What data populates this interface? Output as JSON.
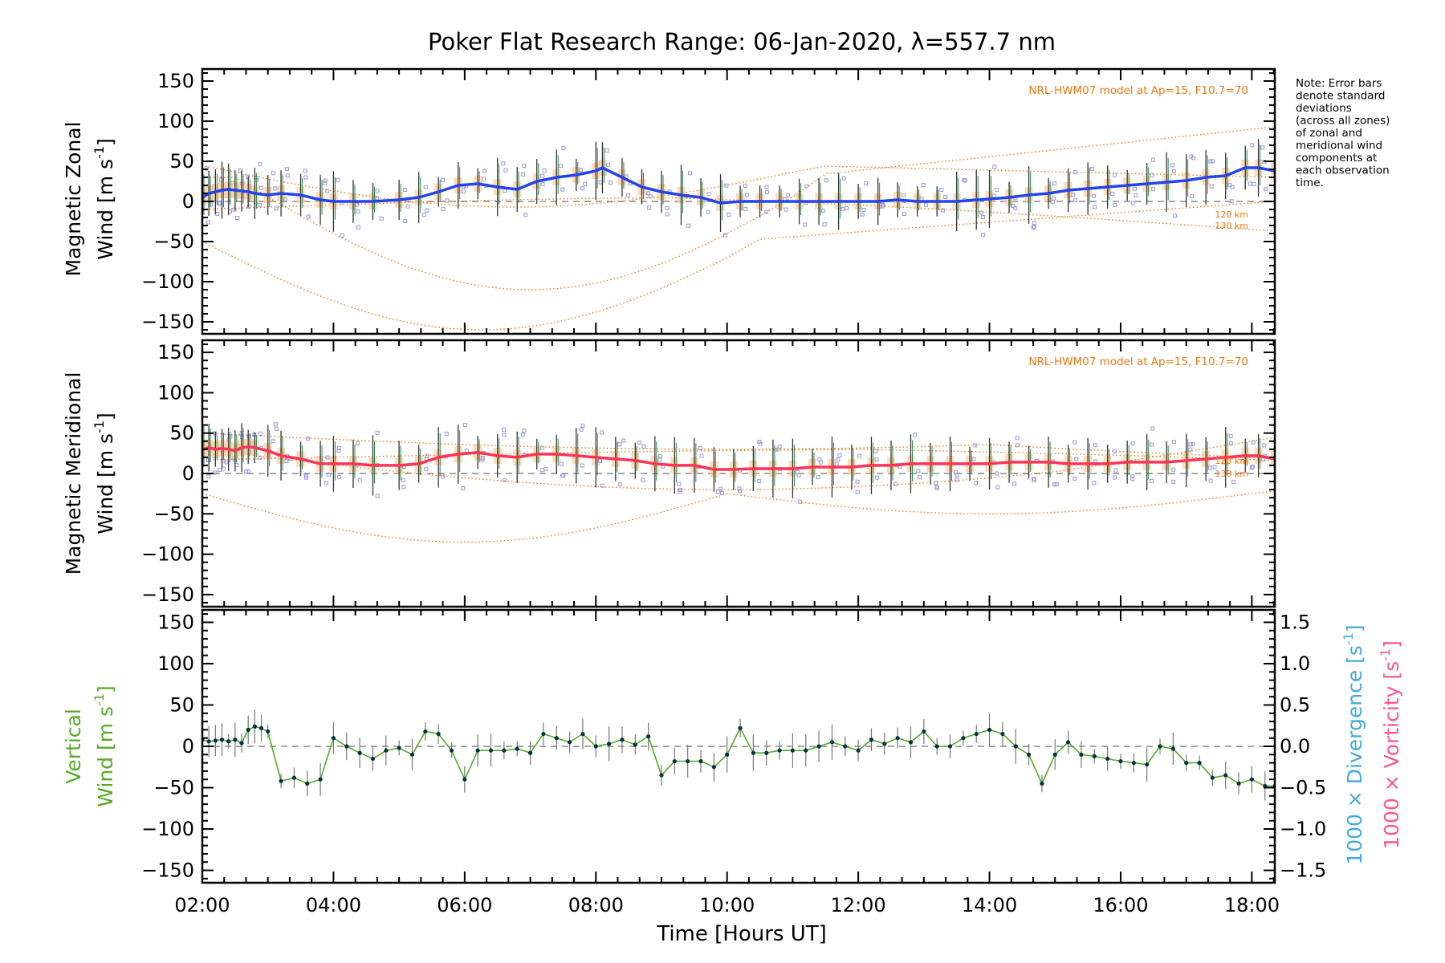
{
  "title": "Poker Flat Research Range: 06-Jan-2020, λ=557.7 nm",
  "note": [
    "Note: Error bars",
    "denote standard",
    "deviations",
    "(across all zones)",
    "of zonal and",
    "meridional wind",
    "components at",
    "each observation",
    "time."
  ],
  "x_axis": {
    "label": "Time [Hours UT]",
    "ticks": [
      "02:00",
      "04:00",
      "06:00",
      "08:00",
      "10:00",
      "12:00",
      "14:00",
      "16:00",
      "18:00"
    ],
    "range_hours": [
      2.0,
      18.35
    ]
  },
  "panels": {
    "zonal": {
      "ylabel_line1": "Magnetic Zonal",
      "ylabel_line2": "Wind [m s",
      "ylabel_sup": "-1",
      "ylabel_close": "]",
      "yticks": [
        "150",
        "100",
        "50",
        "0",
        "−50",
        "−100",
        "−150"
      ],
      "model_label": "NRL-HWM07 model at Ap=15, F10.7=70",
      "alt_labels": [
        "120 km",
        "130 km"
      ]
    },
    "meridional": {
      "ylabel_line1": "Magnetic Meridional",
      "ylabel_line2": "Wind [m s",
      "ylabel_sup": "-1",
      "ylabel_close": "]",
      "yticks": [
        "150",
        "100",
        "50",
        "0",
        "−50",
        "−100",
        "−150"
      ],
      "model_label": "NRL-HWM07 model at Ap=15, F10.7=70",
      "alt_labels": [
        "120 km",
        "130 km"
      ]
    },
    "vertical": {
      "ylabel_line1": "Vertical",
      "ylabel_line2": "Wind [m s",
      "ylabel_sup": "-1",
      "ylabel_close": "]",
      "yticks": [
        "150",
        "100",
        "50",
        "0",
        "−50",
        "−100",
        "−150"
      ],
      "right_ticks": [
        "1.5",
        "1.0",
        "0.5",
        "0.0",
        "−0.5",
        "−1.0",
        "−1.5"
      ],
      "right_label_div": "1000 × Divergence [s",
      "right_label_vort": "1000 × Vorticity [s",
      "right_sup": "-1",
      "right_close": "]"
    }
  },
  "colors": {
    "zonal_line": "#2244ee",
    "meridional_line": "#ff3355",
    "vertical_line": "#55aa22",
    "vertical_points": "#003344",
    "divergence_label": "#44aadd",
    "vorticity_label": "#ff5588",
    "model_curves": "#ee7711",
    "model_shade": "#ffcc99",
    "zone_markers": "#9999dd",
    "error_bars": "#333333",
    "zero_line": "#888888"
  },
  "chart_data": [
    {
      "type": "line",
      "panel": "zonal",
      "name": "",
      "ylim": [
        -165,
        165
      ],
      "x": [
        2.0,
        2.1,
        2.2,
        2.3,
        2.4,
        2.5,
        2.6,
        2.7,
        2.8,
        3.0,
        3.2,
        3.5,
        3.8,
        4.0,
        4.3,
        4.6,
        5.0,
        5.3,
        5.6,
        5.9,
        6.2,
        6.5,
        6.8,
        7.1,
        7.4,
        7.7,
        8.0,
        8.1,
        8.4,
        8.7,
        9.0,
        9.3,
        9.6,
        9.9,
        10.2,
        10.5,
        10.8,
        11.1,
        11.4,
        11.7,
        12.0,
        12.3,
        12.6,
        12.9,
        13.2,
        13.5,
        13.8,
        14.0,
        14.3,
        14.6,
        14.9,
        15.2,
        15.5,
        15.8,
        16.1,
        16.4,
        16.7,
        17.0,
        17.3,
        17.6,
        17.9,
        18.1,
        18.35
      ],
      "y": [
        5,
        10,
        12,
        14,
        15,
        14,
        13,
        12,
        10,
        8,
        10,
        8,
        2,
        0,
        0,
        0,
        2,
        5,
        12,
        20,
        22,
        18,
        15,
        25,
        30,
        33,
        38,
        42,
        30,
        18,
        12,
        8,
        5,
        -2,
        0,
        0,
        0,
        0,
        0,
        0,
        0,
        0,
        2,
        0,
        0,
        0,
        2,
        3,
        5,
        8,
        10,
        14,
        16,
        18,
        20,
        22,
        24,
        26,
        30,
        32,
        42,
        42,
        38
      ]
    },
    {
      "type": "line",
      "panel": "meridional",
      "name": "",
      "ylim": [
        -165,
        165
      ],
      "x": [
        2.0,
        2.1,
        2.2,
        2.3,
        2.4,
        2.5,
        2.6,
        2.7,
        2.8,
        3.0,
        3.2,
        3.5,
        3.8,
        4.0,
        4.3,
        4.6,
        5.0,
        5.3,
        5.6,
        5.9,
        6.2,
        6.5,
        6.8,
        7.1,
        7.4,
        7.7,
        8.0,
        8.3,
        8.6,
        8.9,
        9.2,
        9.5,
        9.8,
        10.1,
        10.4,
        10.7,
        11.0,
        11.3,
        11.6,
        11.9,
        12.2,
        12.5,
        12.8,
        13.1,
        13.4,
        13.7,
        14.0,
        14.3,
        14.6,
        14.9,
        15.2,
        15.5,
        15.8,
        16.1,
        16.4,
        16.7,
        17.0,
        17.3,
        17.6,
        17.9,
        18.1,
        18.35
      ],
      "y": [
        30,
        32,
        30,
        31,
        30,
        28,
        32,
        33,
        32,
        28,
        22,
        18,
        12,
        12,
        12,
        10,
        10,
        12,
        20,
        24,
        26,
        22,
        20,
        24,
        24,
        22,
        20,
        18,
        16,
        12,
        10,
        10,
        5,
        5,
        6,
        6,
        6,
        8,
        8,
        8,
        10,
        10,
        12,
        12,
        12,
        12,
        12,
        14,
        14,
        14,
        12,
        12,
        12,
        14,
        14,
        14,
        16,
        18,
        20,
        22,
        22,
        18
      ]
    },
    {
      "type": "line",
      "panel": "vertical",
      "name": "",
      "ylim": [
        -165,
        165
      ],
      "x": [
        2.0,
        2.1,
        2.2,
        2.3,
        2.4,
        2.5,
        2.6,
        2.7,
        2.8,
        2.9,
        3.0,
        3.2,
        3.4,
        3.6,
        3.8,
        4.0,
        4.2,
        4.4,
        4.6,
        4.8,
        5.0,
        5.2,
        5.4,
        5.6,
        5.8,
        6.0,
        6.2,
        6.4,
        6.6,
        6.8,
        7.0,
        7.2,
        7.4,
        7.6,
        7.8,
        8.0,
        8.2,
        8.4,
        8.6,
        8.8,
        9.0,
        9.2,
        9.4,
        9.6,
        9.8,
        10.0,
        10.2,
        10.4,
        10.6,
        10.8,
        11.0,
        11.2,
        11.4,
        11.6,
        11.8,
        12.0,
        12.2,
        12.4,
        12.6,
        12.8,
        13.0,
        13.2,
        13.4,
        13.6,
        13.8,
        14.0,
        14.2,
        14.4,
        14.6,
        14.8,
        15.0,
        15.2,
        15.4,
        15.6,
        15.8,
        16.0,
        16.2,
        16.4,
        16.6,
        16.8,
        17.0,
        17.2,
        17.4,
        17.6,
        17.8,
        18.0,
        18.2,
        18.35
      ],
      "y": [
        8,
        6,
        7,
        8,
        6,
        8,
        4,
        20,
        24,
        22,
        18,
        -42,
        -38,
        -45,
        -40,
        10,
        0,
        -8,
        -15,
        -5,
        -2,
        -10,
        18,
        15,
        -5,
        -40,
        -5,
        -5,
        -5,
        -3,
        -8,
        15,
        10,
        5,
        15,
        0,
        3,
        8,
        2,
        12,
        -35,
        -18,
        -18,
        -18,
        -25,
        -10,
        22,
        -8,
        -8,
        -5,
        -5,
        -5,
        0,
        5,
        0,
        -5,
        8,
        3,
        10,
        5,
        18,
        0,
        0,
        10,
        15,
        20,
        15,
        0,
        -10,
        -45,
        -10,
        5,
        -10,
        -12,
        -15,
        -18,
        -20,
        -22,
        0,
        -3,
        -20,
        -20,
        -38,
        -35,
        -45,
        -40,
        -48,
        -48
      ]
    }
  ]
}
